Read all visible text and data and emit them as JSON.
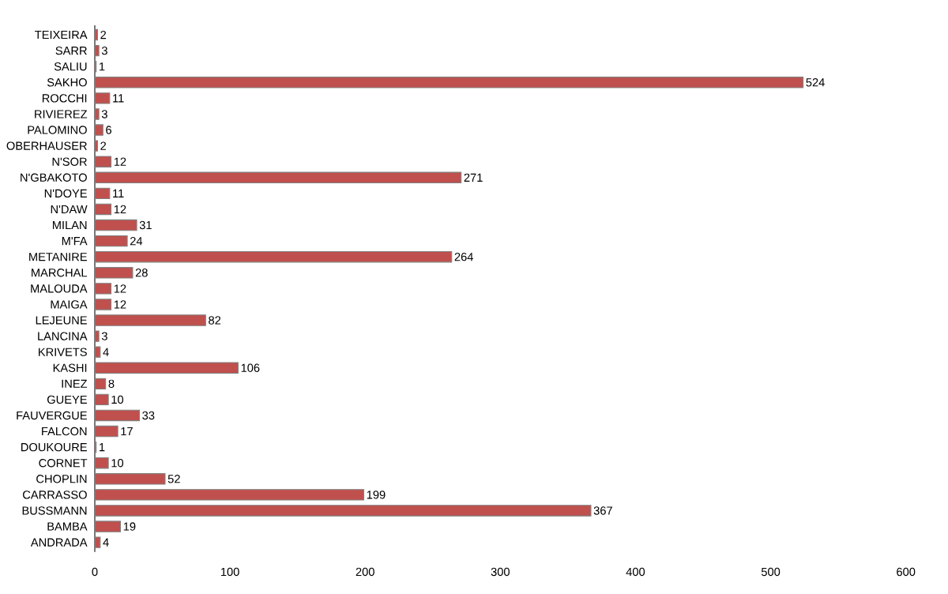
{
  "chart_data": {
    "type": "bar",
    "orientation": "horizontal",
    "color": "#c0504d",
    "data_labels": true,
    "categories": [
      "TEIXEIRA",
      "SARR",
      "SALIU",
      "SAKHO",
      "ROCCHI",
      "RIVIEREZ",
      "PALOMINO",
      "OBERHAUSER",
      "N'SOR",
      "N'GBAKOTO",
      "N'DOYE",
      "N'DAW",
      "MILAN",
      "M'FA",
      "METANIRE",
      "MARCHAL",
      "MALOUDA",
      "MAIGA",
      "LEJEUNE",
      "LANCINA",
      "KRIVETS",
      "KASHI",
      "INEZ",
      "GUEYE",
      "FAUVERGUE",
      "FALCON",
      "DOUKOURE",
      "CORNET",
      "CHOPLIN",
      "CARRASSO",
      "BUSSMANN",
      "BAMBA",
      "ANDRADA"
    ],
    "values": [
      2,
      3,
      1,
      524,
      11,
      3,
      6,
      2,
      12,
      271,
      11,
      12,
      31,
      24,
      264,
      28,
      12,
      12,
      82,
      3,
      4,
      106,
      8,
      10,
      33,
      17,
      1,
      10,
      52,
      199,
      367,
      19,
      4
    ],
    "xlim": [
      0,
      600
    ],
    "xticks": [
      0,
      100,
      200,
      300,
      400,
      500,
      600
    ]
  }
}
